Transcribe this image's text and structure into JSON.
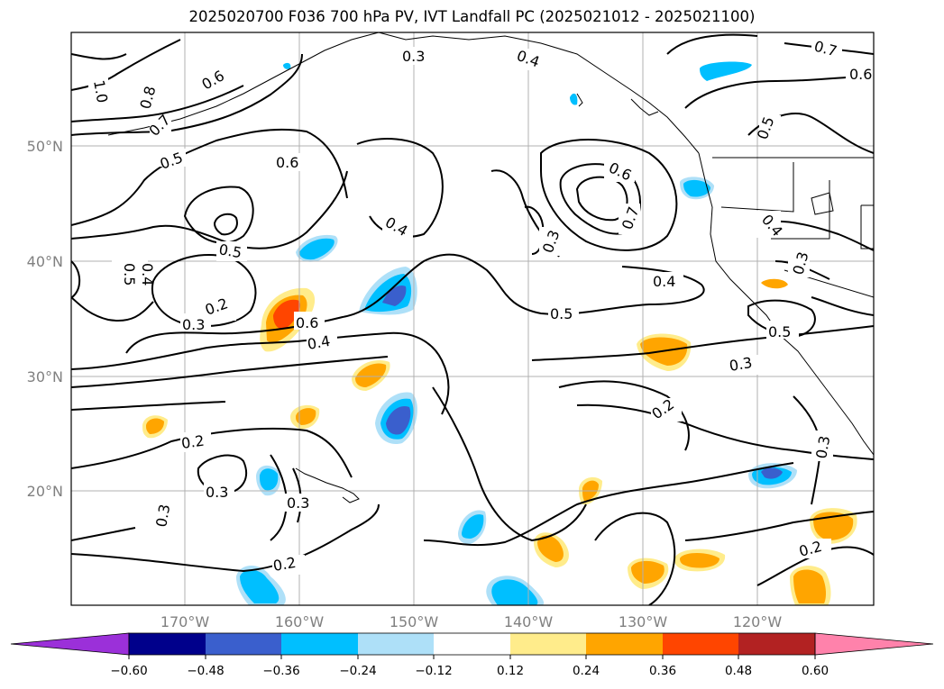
{
  "title": "2025020700 F036 700 hPa PV, IVT Landfall PC (2025021012 - 2025021100)",
  "map": {
    "lat_ticks": [
      "50°N",
      "40°N",
      "30°N",
      "20°N"
    ],
    "lon_ticks": [
      "170°W",
      "160°W",
      "150°W",
      "140°W",
      "130°W",
      "120°W"
    ],
    "contour_labels": [
      "1.0",
      "0.8",
      "0.7",
      "0.6",
      "0.5",
      "0.6",
      "0.3",
      "0.4",
      "0.7",
      "0.6",
      "0.5",
      "0.5",
      "0.4",
      "0.5",
      "0.3",
      "0.2",
      "0.6",
      "0.4",
      "0.4",
      "0.5",
      "0.3",
      "0.6",
      "0.7",
      "0.4",
      "0.5",
      "0.3",
      "0.3",
      "0.2",
      "0.2",
      "0.3",
      "0.3",
      "0.2",
      "0.3",
      "0.2",
      "0.4",
      "0.3"
    ]
  },
  "colorbar": {
    "ticks": [
      "−0.60",
      "−0.48",
      "−0.36",
      "−0.24",
      "−0.12",
      "0.12",
      "0.24",
      "0.36",
      "0.48",
      "0.60"
    ],
    "colors": [
      "#9b30d9",
      "#00008b",
      "#3a5fcd",
      "#00bfff",
      "#aee0f8",
      "#ffffff",
      "#ffec8b",
      "#ffa500",
      "#ff4500",
      "#b22222",
      "#ff82ab"
    ]
  }
}
